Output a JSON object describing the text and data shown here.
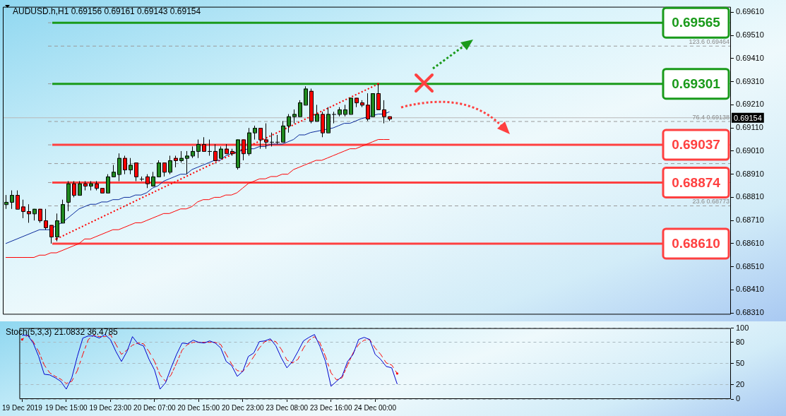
{
  "chart_data": [
    {
      "type": "candlestick",
      "title": "AUDUSD.h,H1  0.69156 0.69161 0.69143 0.69154",
      "categories": [
        null,
        null,
        null,
        null,
        null,
        null,
        null,
        null,
        null,
        null,
        null,
        null,
        null,
        null,
        null,
        null,
        null,
        null,
        null,
        null,
        null,
        null,
        null,
        null,
        null,
        null,
        null,
        null,
        null,
        null,
        null,
        null,
        null,
        null,
        null,
        null,
        null,
        null,
        null,
        null,
        null,
        null,
        null,
        null,
        null,
        null,
        null,
        null,
        null,
        null,
        null,
        null,
        null,
        null,
        null,
        null,
        null,
        null,
        null,
        null,
        null,
        null,
        null,
        null,
        null,
        null,
        null,
        null,
        null,
        null,
        null,
        null,
        null,
        null,
        null,
        null,
        null,
        null,
        null,
        null,
        null,
        null,
        null,
        null,
        null,
        null,
        null,
        null,
        null,
        null,
        null,
        null,
        null,
        null,
        null,
        null,
        null,
        null,
        null,
        null,
        null,
        null,
        null,
        null,
        null,
        null,
        null,
        null,
        null,
        null,
        null,
        null,
        null,
        null,
        null,
        null,
        null,
        null,
        null,
        null,
        null,
        null,
        null,
        null,
        null,
        null,
        null,
        null,
        null
      ],
      "ohlc": [
        [
          0.6878,
          0.6882,
          0.6876,
          0.6879
        ],
        [
          0.6879,
          0.6884,
          0.6876,
          0.6882
        ],
        [
          0.6882,
          0.6884,
          0.6876,
          0.6876
        ],
        [
          0.6877,
          0.688,
          0.6872,
          0.6875
        ],
        [
          0.6875,
          0.6878,
          0.687,
          0.6874
        ],
        [
          0.6874,
          0.6876,
          0.6871,
          0.6876
        ],
        [
          0.6876,
          0.6876,
          0.687,
          0.6871
        ],
        [
          0.6871,
          0.6876,
          0.6867,
          0.6868
        ],
        [
          0.6869,
          0.6869,
          0.6861,
          0.6864
        ],
        [
          0.6864,
          0.6874,
          0.6862,
          0.6871
        ],
        [
          0.687,
          0.688,
          0.687,
          0.6878
        ],
        [
          0.6879,
          0.6888,
          0.6875,
          0.6887
        ],
        [
          0.6887,
          0.6888,
          0.6881,
          0.6882
        ],
        [
          0.6882,
          0.6888,
          0.6882,
          0.6887
        ],
        [
          0.6887,
          0.6888,
          0.6884,
          0.6886
        ],
        [
          0.6886,
          0.6888,
          0.6884,
          0.6887
        ],
        [
          0.6887,
          0.6888,
          0.6884,
          0.6885
        ],
        [
          0.6885,
          0.6885,
          0.6883,
          0.6883
        ],
        [
          0.6883,
          0.6891,
          0.6883,
          0.689
        ],
        [
          0.689,
          0.6895,
          0.689,
          0.6892
        ],
        [
          0.6891,
          0.69,
          0.6888,
          0.6898
        ],
        [
          0.6898,
          0.6899,
          0.6891,
          0.6893
        ],
        [
          0.6893,
          0.6898,
          0.6891,
          0.6895
        ],
        [
          0.6896,
          0.6896,
          0.6888,
          0.689
        ],
        [
          0.6889,
          0.689,
          0.6888,
          0.6889
        ],
        [
          0.689,
          0.6891,
          0.6885,
          0.6887
        ],
        [
          0.6886,
          0.6892,
          0.6886,
          0.689
        ],
        [
          0.689,
          0.6897,
          0.689,
          0.6896
        ],
        [
          0.6896,
          0.6896,
          0.689,
          0.6892
        ],
        [
          0.6892,
          0.6899,
          0.6891,
          0.6897
        ],
        [
          0.6898,
          0.6899,
          0.6894,
          0.6897
        ],
        [
          0.6897,
          0.6901,
          0.6896,
          0.6898
        ],
        [
          0.6898,
          0.6901,
          0.6891,
          0.6899
        ],
        [
          0.6899,
          0.6903,
          0.6898,
          0.6901
        ],
        [
          0.6901,
          0.6906,
          0.6898,
          0.6904
        ],
        [
          0.6904,
          0.6907,
          0.6901,
          0.6901
        ],
        [
          0.6901,
          0.6906,
          0.6899,
          0.6901
        ],
        [
          0.6901,
          0.6904,
          0.6897,
          0.6897
        ],
        [
          0.6898,
          0.6903,
          0.6898,
          0.6902
        ],
        [
          0.6902,
          0.6904,
          0.69,
          0.69
        ],
        [
          0.6901,
          0.6902,
          0.6899,
          0.69
        ],
        [
          0.6894,
          0.6906,
          0.6893,
          0.6906
        ],
        [
          0.6906,
          0.6906,
          0.6897,
          0.69
        ],
        [
          0.69,
          0.6911,
          0.6899,
          0.6909
        ],
        [
          0.6909,
          0.6912,
          0.6906,
          0.6911
        ],
        [
          0.6911,
          0.6911,
          0.6902,
          0.6906
        ],
        [
          0.6906,
          0.6913,
          0.6902,
          0.6905
        ],
        [
          0.6905,
          0.6909,
          0.6903,
          0.6905
        ],
        [
          0.6905,
          0.6908,
          0.6904,
          0.6905
        ],
        [
          0.6905,
          0.6914,
          0.6905,
          0.6912
        ],
        [
          0.6912,
          0.6917,
          0.6909,
          0.6916
        ],
        [
          0.6916,
          0.6919,
          0.6913,
          0.6917
        ],
        [
          0.6916,
          0.6923,
          0.6916,
          0.6922
        ],
        [
          0.6921,
          0.6929,
          0.6921,
          0.6928
        ],
        [
          0.6927,
          0.6928,
          0.6913,
          0.6914
        ],
        [
          0.6914,
          0.6921,
          0.6914,
          0.6917
        ],
        [
          0.6917,
          0.6918,
          0.6907,
          0.6909
        ],
        [
          0.6909,
          0.692,
          0.6909,
          0.6917
        ],
        [
          0.6917,
          0.6918,
          0.6913,
          0.6917
        ],
        [
          0.6917,
          0.692,
          0.6916,
          0.6919
        ],
        [
          0.6917,
          0.6921,
          0.6916,
          0.6919
        ],
        [
          0.6917,
          0.6924,
          0.6917,
          0.6924
        ],
        [
          0.6924,
          0.6924,
          0.692,
          0.6922
        ],
        [
          0.6922,
          0.6923,
          0.692,
          0.6921
        ],
        [
          0.6921,
          0.6926,
          0.6914,
          0.6915
        ],
        [
          0.6916,
          0.6926,
          0.6916,
          0.6926
        ],
        [
          0.6926,
          0.693,
          0.6919,
          0.6919
        ],
        [
          0.6919,
          0.6923,
          0.6913,
          0.6916
        ],
        [
          0.6916,
          0.6916,
          0.6914,
          0.6915
        ],
        null,
        null,
        null,
        null,
        null,
        null,
        null,
        null,
        null,
        null,
        null,
        null,
        null,
        null,
        null,
        null,
        null,
        null,
        null,
        null,
        null,
        null,
        null,
        null,
        null,
        null,
        null,
        null,
        null,
        null,
        null,
        null,
        null,
        null,
        null,
        null,
        null,
        null,
        null,
        null,
        null,
        null,
        null,
        null,
        null,
        null,
        null,
        null,
        null,
        null,
        null,
        null,
        null,
        null,
        null,
        null,
        null,
        null,
        null,
        null
      ],
      "series": [
        {
          "type": "line",
          "color": "#0a2a9a",
          "values": [
            0.6861,
            0.6862,
            0.6863,
            0.6864,
            0.6865,
            0.6866,
            0.6867,
            0.6867,
            0.6867,
            0.6869,
            0.687,
            0.6872,
            0.6874,
            0.6876,
            0.6877,
            0.6878,
            0.6878,
            0.6879,
            0.6879,
            0.688,
            0.688,
            0.6881,
            0.6881,
            0.6882,
            0.6882,
            0.6883,
            0.6885,
            0.6886,
            0.6888,
            0.6889,
            0.689,
            0.6891,
            0.6891,
            0.6893,
            0.6894,
            0.6895,
            0.6896,
            0.6897,
            0.6897,
            0.6899,
            0.69,
            null,
            null,
            0.6902,
            0.6902,
            0.6903,
            0.6903,
            0.6904,
            0.6904,
            0.6904,
            0.6905,
            0.6906,
            0.6908,
            0.6908,
            0.6909,
            null,
            null,
            null,
            0.6911,
            0.6912,
            0.6913,
            0.6913,
            0.6914,
            0.6915,
            null,
            null,
            0.6917,
            0.6917,
            0.6918,
            null,
            null,
            null,
            null,
            null,
            null,
            null,
            null,
            null,
            null,
            null,
            null,
            null,
            null,
            null,
            null,
            null,
            null,
            null,
            null,
            null,
            null,
            null,
            null,
            null,
            null,
            null,
            null,
            null,
            null,
            null,
            null,
            null,
            null,
            null,
            null,
            null,
            null,
            null,
            null,
            null,
            null,
            null,
            null,
            null,
            null,
            null,
            null,
            null,
            null,
            null,
            null,
            null,
            null,
            null,
            null,
            null,
            null,
            null,
            null
          ]
        },
        {
          "type": "line",
          "color": "#ff0000",
          "values": [
            0.6855,
            0.6855,
            0.6855,
            0.6855,
            0.6855,
            0.6855,
            0.6856,
            0.6856,
            0.6857,
            0.6857,
            0.6858,
            0.6859,
            0.686,
            0.6861,
            0.6863,
            0.6863,
            0.6864,
            0.6865,
            0.6866,
            0.6867,
            0.6867,
            0.6868,
            0.6869,
            0.687,
            0.687,
            0.6871,
            0.6872,
            0.6873,
            0.6874,
            0.6874,
            0.6875,
            0.6876,
            0.6876,
            0.6877,
            0.6879,
            0.688,
            0.688,
            0.6881,
            0.6881,
            0.6882,
            0.6882,
            0.6883,
            0.6885,
            0.6887,
            0.6888,
            0.6889,
            0.6889,
            0.689,
            0.689,
            0.6891,
            0.6891,
            0.6893,
            0.6894,
            0.6895,
            0.6896,
            0.6897,
            0.6897,
            0.6898,
            0.6899,
            0.69,
            0.6901,
            0.6902,
            0.6902,
            0.6903,
            0.6904,
            0.6905,
            0.6906,
            0.6906,
            0.6906,
            null,
            null,
            null,
            null,
            null,
            null,
            null,
            null,
            null,
            null,
            null,
            null,
            null,
            null,
            null,
            null,
            null,
            null,
            null,
            null,
            null,
            null,
            null,
            null,
            null,
            null,
            null,
            null,
            null,
            null,
            null,
            null,
            null,
            null,
            null,
            null,
            null,
            null,
            null,
            null,
            null,
            null,
            null,
            null,
            null,
            null,
            null,
            null,
            null,
            null,
            null,
            null,
            null,
            null,
            null,
            null,
            null,
            null,
            null,
            null
          ]
        },
        {
          "type": "line",
          "color": "#ff0000",
          "line_style": "dotted",
          "values": [
            null,
            null,
            null,
            null,
            null,
            null,
            null,
            null,
            null,
            0.6863,
            null,
            null,
            null,
            null,
            null,
            null,
            null,
            null,
            null,
            null,
            null,
            null,
            null,
            null,
            null,
            null,
            null,
            null,
            null,
            null,
            null,
            null,
            null,
            null,
            null,
            null,
            null,
            null,
            null,
            null,
            null,
            null,
            null,
            null,
            null,
            null,
            null,
            null,
            null,
            null,
            null,
            null,
            null,
            null,
            null,
            null,
            null,
            null,
            null,
            null,
            null,
            null,
            null,
            null,
            null,
            null,
            0.693,
            null,
            null,
            null,
            null,
            null,
            null,
            null,
            null,
            null,
            null,
            null,
            null,
            null,
            null,
            null,
            null,
            null,
            null,
            null,
            null,
            null,
            null,
            null,
            null,
            null,
            null,
            null,
            null,
            null,
            null,
            null,
            null,
            null,
            null,
            null,
            null,
            null,
            null,
            null,
            null,
            null,
            null,
            null,
            null,
            null,
            null,
            null,
            null,
            null,
            null,
            null,
            null,
            null,
            null,
            null,
            null,
            null,
            null,
            null,
            null,
            null,
            null
          ]
        }
      ],
      "ylim": [
        0.68303,
        0.69634
      ],
      "yticks": [
        {
          "value": 0.6831,
          "label": "0.68310"
        },
        {
          "value": 0.6841,
          "label": "0.68410"
        },
        {
          "value": 0.6851,
          "label": "0.68510"
        },
        {
          "value": 0.6861,
          "label": "0.68610"
        },
        {
          "value": 0.6871,
          "label": "0.68710"
        },
        {
          "value": 0.6881,
          "label": "0.68810"
        },
        {
          "value": 0.6891,
          "label": "0.68910"
        },
        {
          "value": 0.6901,
          "label": "0.69010"
        },
        {
          "value": 0.6911,
          "label": "0.69110"
        },
        {
          "value": 0.6921,
          "label": "0.69210"
        },
        {
          "value": 0.6931,
          "label": "0.69310"
        },
        {
          "value": 0.6941,
          "label": "0.69410"
        },
        {
          "value": 0.6951,
          "label": "0.69510"
        },
        {
          "value": 0.6961,
          "label": "0.69610"
        }
      ],
      "tick_labels": "y",
      "ref_lines": [
        {
          "axis": "y",
          "value": 0.69565,
          "color": "#9a9a9a",
          "line_style": "dashed"
        },
        {
          "axis": "y",
          "value": 0.69464,
          "label": "123.6 0.69464",
          "color": "#9a9a9a",
          "line_style": "dashed"
        },
        {
          "axis": "y",
          "value": 0.69301,
          "color": "#9a9a9a",
          "line_style": "dashed"
        },
        {
          "axis": "y",
          "value": 0.69138,
          "label": "76.4 0.69138",
          "color": "#9a9a9a",
          "line_style": "dashed"
        },
        {
          "axis": "y",
          "value": 0.69037,
          "color": "#9a9a9a",
          "line_style": "dashed"
        },
        {
          "axis": "y",
          "value": 0.68956,
          "color": "#9a9a9a",
          "line_style": "dashed"
        },
        {
          "axis": "y",
          "value": 0.68874,
          "color": "#9a9a9a",
          "line_style": "dashed"
        },
        {
          "axis": "y",
          "value": 0.68773,
          "label": "23.6 0.68773",
          "color": "#9a9a9a",
          "line_style": "dashed"
        },
        {
          "axis": "y",
          "value": 0.69565,
          "label": "0.69565",
          "color": "#1a9a1a",
          "line_style": "solid"
        },
        {
          "axis": "y",
          "value": 0.69301,
          "label": "0.69301",
          "color": "#1a9a1a",
          "line_style": "solid"
        },
        {
          "axis": "y",
          "value": 0.69037,
          "label": "0.69037",
          "color": "#ff4040",
          "line_style": "solid"
        },
        {
          "axis": "y",
          "value": 0.68874,
          "label": "0.68874",
          "color": "#ff4040",
          "line_style": "solid"
        },
        {
          "axis": "y",
          "value": 0.6861,
          "label": "0.68610",
          "color": "#ff4040",
          "line_style": "solid"
        },
        {
          "axis": "y",
          "value": 0.69154,
          "label": "0.69154",
          "color": "#b8b8b8",
          "line_style": "solid"
        }
      ]
    },
    {
      "type": "line",
      "title": "Stoch(5,3,3) 21.0832 36.4785",
      "categories": [
        "19 Dec 2019",
        null,
        null,
        null,
        null,
        null,
        null,
        null,
        "19 Dec 15:00",
        null,
        null,
        null,
        null,
        null,
        null,
        null,
        "19 Dec 23:00",
        null,
        null,
        null,
        null,
        null,
        null,
        null,
        "20 Dec 07:00",
        null,
        null,
        null,
        null,
        null,
        null,
        null,
        "20 Dec 15:00",
        null,
        null,
        null,
        null,
        null,
        null,
        null,
        "20 Dec 23:00",
        null,
        null,
        null,
        null,
        null,
        null,
        null,
        "23 Dec 08:00",
        null,
        null,
        null,
        null,
        null,
        null,
        null,
        "23 Dec 16:00",
        null,
        null,
        null,
        null,
        null,
        null,
        null,
        "24 Dec 00:00",
        null,
        null,
        null,
        null,
        null,
        null,
        null,
        null,
        null,
        null,
        null,
        null,
        null,
        null,
        null,
        null,
        null,
        null,
        null,
        null,
        null,
        null,
        null,
        null,
        null,
        null,
        null,
        null,
        null,
        null,
        null,
        null,
        null,
        null,
        null,
        null,
        null,
        null,
        null,
        null,
        null,
        null,
        null,
        null,
        null,
        null,
        null,
        null,
        null,
        null,
        null,
        null,
        null,
        null,
        null,
        null,
        null,
        null,
        null,
        null,
        null,
        null,
        null,
        null
      ],
      "series": [
        {
          "color": "#0000cc",
          "line_style": "solid",
          "values": [
            90,
            90,
            79,
            60,
            35,
            34,
            30,
            25,
            14,
            30,
            60,
            86,
            89,
            89,
            86,
            91,
            84,
            67,
            53,
            67,
            88,
            78,
            75,
            56,
            41,
            14,
            23,
            44,
            63,
            79,
            78,
            83,
            80,
            79,
            82,
            79,
            72,
            53,
            47,
            32,
            39,
            60,
            65,
            81,
            82,
            85,
            75,
            58,
            44,
            53,
            67,
            82,
            87,
            91,
            74,
            53,
            18,
            25,
            32,
            53,
            63,
            84,
            87,
            84,
            63,
            56,
            46,
            44,
            21,
            null,
            null,
            null,
            null,
            null,
            null,
            null,
            null,
            null,
            null,
            null,
            null,
            null,
            null,
            null,
            null,
            null,
            null,
            null,
            null,
            null,
            null,
            null,
            null,
            null,
            null,
            null,
            null,
            null,
            null,
            null,
            null,
            null,
            null,
            null,
            null,
            null,
            null,
            null,
            null,
            null,
            null,
            null,
            null,
            null,
            null,
            null,
            null,
            null,
            null,
            null,
            null,
            null,
            null,
            null,
            null,
            null,
            null,
            null,
            null
          ]
        },
        {
          "color": "#ff0000",
          "line_style": "dashed",
          "values": [
            84,
            90,
            81,
            67,
            48,
            37,
            32,
            28,
            22,
            25,
            40,
            63,
            84,
            90,
            88,
            88,
            91,
            77,
            63,
            69,
            76,
            79,
            78,
            67,
            53,
            34,
            25,
            34,
            51,
            69,
            77,
            80,
            80,
            80,
            80,
            80,
            77,
            63,
            49,
            40,
            39,
            48,
            60,
            72,
            81,
            83,
            81,
            70,
            55,
            51,
            56,
            72,
            83,
            88,
            79,
            60,
            37,
            27,
            30,
            48,
            65,
            77,
            83,
            84,
            72,
            63,
            51,
            48,
            36,
            null,
            null,
            null,
            null,
            null,
            null,
            null,
            null,
            null,
            null,
            null,
            null,
            null,
            null,
            null,
            null,
            null,
            null,
            null,
            null,
            null,
            null,
            null,
            null,
            null,
            null,
            null,
            null,
            null,
            null,
            null,
            null,
            null,
            null,
            null,
            null,
            null,
            null,
            null,
            null,
            null,
            null,
            null,
            null,
            null,
            null,
            null,
            null,
            null,
            null,
            null,
            null,
            null,
            null,
            null,
            null,
            null,
            null,
            null,
            null
          ]
        }
      ],
      "ylim": [
        0,
        100
      ],
      "yticks": [
        0,
        20,
        50,
        80,
        100
      ],
      "grid": "y"
    }
  ]
}
